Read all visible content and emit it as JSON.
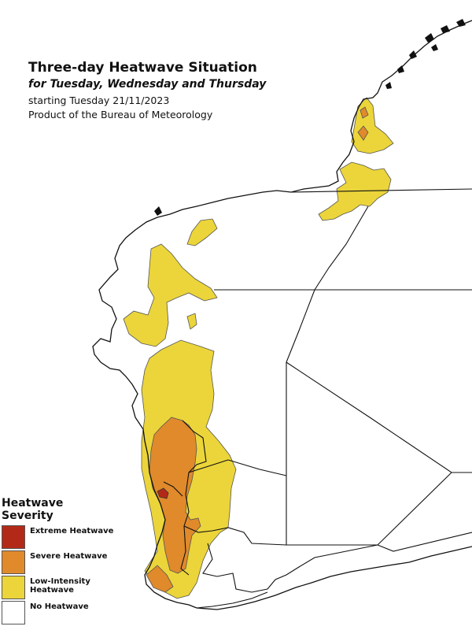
{
  "header": {
    "title": "Three-day Heatwave Situation",
    "subtitle": "for Tuesday, Wednesday and Thursday",
    "start_line": "starting Tuesday 21/11/2023",
    "credit": "Product of the Bureau of Meteorology"
  },
  "legend": {
    "title_line1": "Heatwave",
    "title_line2": "Severity",
    "items": [
      {
        "label": "Extreme Heatwave",
        "color": "#b22a17"
      },
      {
        "label": "Severe Heatwave",
        "color": "#e08a2b"
      },
      {
        "label": "Low-Intensity Heatwave",
        "color": "#ebd53a"
      },
      {
        "label": "No Heatwave",
        "color": "#ffffff"
      }
    ]
  },
  "colors": {
    "extreme": "#b22a17",
    "severe": "#e08a2b",
    "low_intensity": "#ebd53a",
    "no_heatwave": "#ffffff",
    "boundary": "#111111"
  }
}
